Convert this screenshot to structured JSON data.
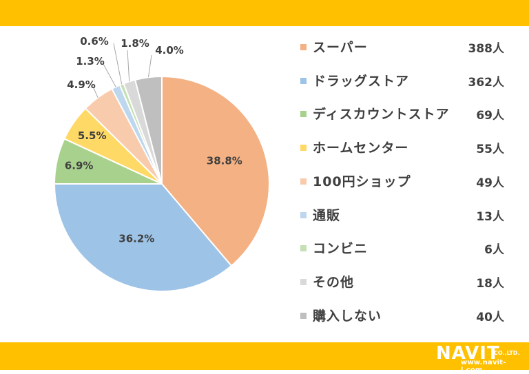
{
  "colors": {
    "band": "#FFC000",
    "label": "#3f3f3f",
    "leader": "#a6a6a6"
  },
  "logo": {
    "brand": "NAVIT",
    "suffix": "CO.,LTD.",
    "url": "www.navit-j.com"
  },
  "chart_data": {
    "type": "pie",
    "start_angle_deg": 0,
    "direction": "clockwise",
    "slices": [
      {
        "label": "スーパー",
        "percent": 38.8,
        "percent_label": "38.8%",
        "count_label": "388人",
        "color": "#F4B183"
      },
      {
        "label": "ドラッグストア",
        "percent": 36.2,
        "percent_label": "36.2%",
        "count_label": "362人",
        "color": "#9DC3E6"
      },
      {
        "label": "ディスカウントストア",
        "percent": 6.9,
        "percent_label": "6.9%",
        "count_label": "69人",
        "color": "#A9D18E"
      },
      {
        "label": "ホームセンター",
        "percent": 5.5,
        "percent_label": "5.5%",
        "count_label": "55人",
        "color": "#FFD966"
      },
      {
        "label": "100円ショップ",
        "percent": 4.9,
        "percent_label": "4.9%",
        "count_label": "49人",
        "color": "#F8CBAD"
      },
      {
        "label": "通販",
        "percent": 1.3,
        "percent_label": "1.3%",
        "count_label": "13人",
        "color": "#BDD7EE"
      },
      {
        "label": "コンビニ",
        "percent": 0.6,
        "percent_label": "0.6%",
        "count_label": "6人",
        "color": "#C5E0B4"
      },
      {
        "label": "その他",
        "percent": 1.8,
        "percent_label": "1.8%",
        "count_label": "18人",
        "color": "#D9D9D9"
      },
      {
        "label": "購入しない",
        "percent": 4.0,
        "percent_label": "4.0%",
        "count_label": "40人",
        "color": "#BFBFBF"
      }
    ]
  }
}
